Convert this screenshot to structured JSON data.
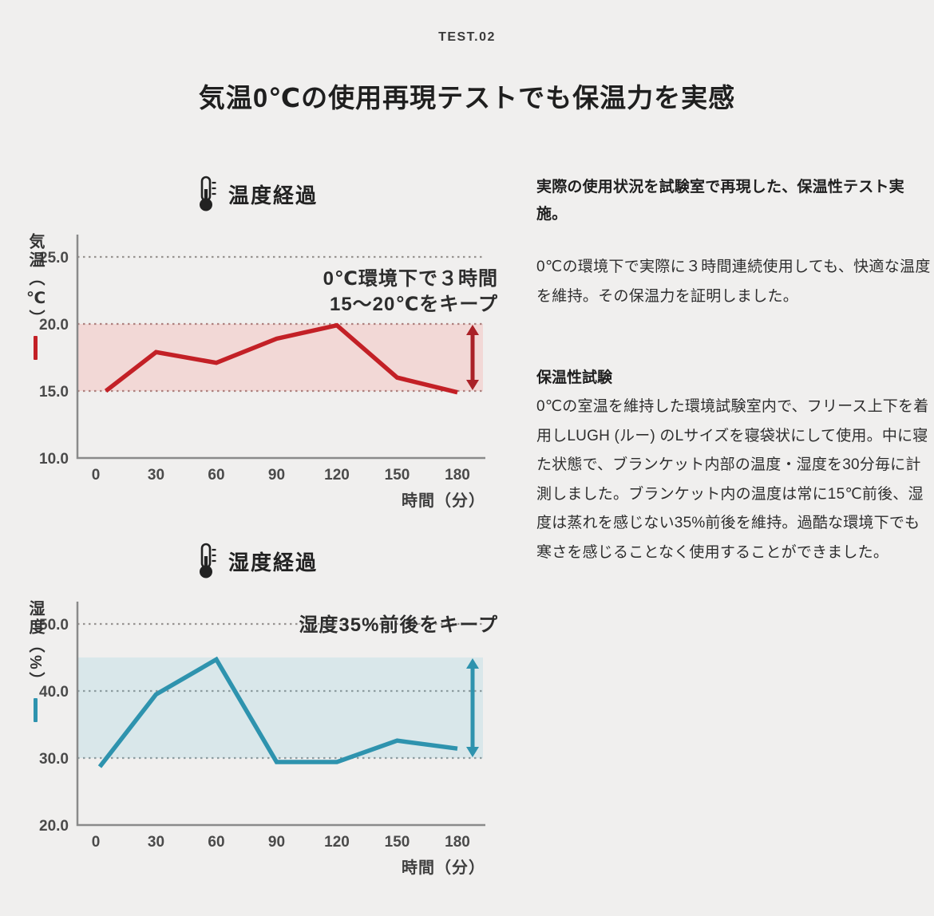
{
  "page": {
    "eyebrow": "TEST.02",
    "title": "気温0℃の使用再現テストでも保温力を実感",
    "background_color": "#f0efee"
  },
  "aside": {
    "lead_heading": "実際の使用状況を試験室で再現した、保温性テスト実施。",
    "lead_body": "0℃の環境下で実際に３時間連続使用しても、快適な温度を維持。その保温力を証明しました。",
    "method_heading": "保温性試験",
    "method_body": "0℃の室温を維持した環境試験室内で、フリース上下を着用しLUGH (ルー) のLサイズを寝袋状にして使用。中に寝た状態で、ブランケット内部の温度・湿度を30分毎に計測しました。ブランケット内の温度は常に15℃前後、湿度は蒸れを感じない35%前後を維持。過酷な環境下でも寒さを感じることなく使用することができました。"
  },
  "chart_data": [
    {
      "id": "temperature",
      "type": "line",
      "icon": "thermometer-icon",
      "title": "温度経過",
      "ylabel": "気温（℃）",
      "xlabel": "時間（分）",
      "x_ticks": [
        0,
        30,
        60,
        90,
        120,
        150,
        180
      ],
      "y_ticks": [
        "25.0",
        "20.0",
        "15.0",
        "10.0"
      ],
      "y_tick_values": [
        25,
        20,
        15,
        10
      ],
      "ylim": [
        10,
        26.5
      ],
      "xlim": [
        -10,
        193
      ],
      "grid": "dashed",
      "grid_dashed_at": [
        25,
        20,
        15
      ],
      "band": {
        "from": 15,
        "to": 20,
        "color": "#f2d8d6",
        "edge_color": "#ad817e"
      },
      "series": [
        {
          "name": "気温",
          "color": "#c32026",
          "x": [
            5,
            30,
            60,
            90,
            120,
            150,
            180
          ],
          "y": [
            15.0,
            17.9,
            17.1,
            18.9,
            19.9,
            16.0,
            14.9
          ]
        }
      ],
      "range_arrow": {
        "from": 15,
        "to": 20,
        "color": "#aa2127"
      },
      "annotation": {
        "lines": [
          "0℃環境下で３時間",
          "15〜20℃をキープ"
        ]
      },
      "legend_color": "#c32026"
    },
    {
      "id": "humidity",
      "type": "line",
      "icon": "thermometer-icon",
      "title": "湿度経過",
      "ylabel": "湿度（%）",
      "xlabel": "時間（分）",
      "x_ticks": [
        0,
        30,
        60,
        90,
        120,
        150,
        180
      ],
      "y_ticks": [
        "50.0",
        "40.0",
        "30.0",
        "20.0"
      ],
      "y_tick_values": [
        50,
        40,
        30,
        20
      ],
      "ylim": [
        20,
        52.5
      ],
      "xlim": [
        -10,
        193
      ],
      "grid": "dashed",
      "grid_dashed_at": [
        50,
        40,
        30
      ],
      "band": {
        "from": 30,
        "to": 45,
        "color": "#d9e7ea",
        "edge_color": "#8d9ca0"
      },
      "series": [
        {
          "name": "湿度",
          "color": "#2e93ae",
          "x": [
            2,
            30,
            60,
            90,
            120,
            150,
            180
          ],
          "y": [
            28.7,
            39.5,
            44.7,
            29.4,
            29.4,
            32.6,
            31.4
          ]
        }
      ],
      "range_arrow": {
        "from": 30,
        "to": 45,
        "color": "#2e93ae"
      },
      "annotation": {
        "lines": [
          "湿度35%前後をキープ"
        ]
      },
      "legend_color": "#2e93ae"
    }
  ]
}
